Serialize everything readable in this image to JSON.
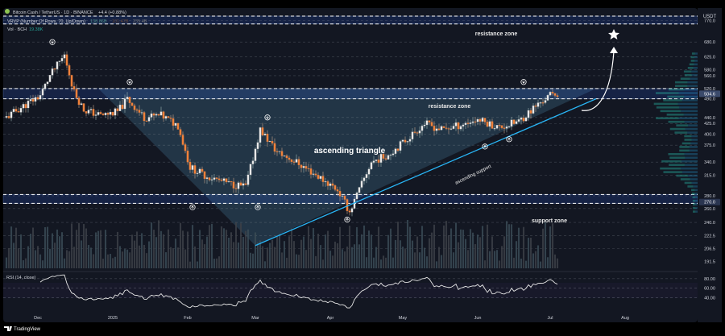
{
  "header": {
    "symbol_line": "Bitcoin Cash / TetherUS · 1D · BINANCE",
    "change": "+4.4 (+0.88%)",
    "vrvp_label": "VRVP (Number Of Rows, 70, Up/Down)",
    "vrvp_values": [
      "138.86B",
      "101.47B",
      "235.4B"
    ],
    "vol_label": "Vol · BCH",
    "vol_value": "19.38K"
  },
  "price_axis": {
    "currency": "USDT",
    "labels": [
      "770.0",
      "680.0",
      "625.0",
      "580.0",
      "560.0",
      "520.0",
      "490.0",
      "440.0",
      "425.0",
      "400.0",
      "375.0",
      "340.0",
      "315.0",
      "280.0",
      "260.0",
      "240.0",
      "222.5",
      "206.5",
      "191.5"
    ],
    "current_price": "504.6",
    "support_price": "270.0"
  },
  "rsi": {
    "label": "RSI (14, close)",
    "ticks": [
      "80.00",
      "60.00",
      "40.00"
    ]
  },
  "time_axis": [
    "Dec",
    "2025",
    "Feb",
    "Mar",
    "Apr",
    "May",
    "Jun",
    "Jul",
    "Aug"
  ],
  "annotations": {
    "resistance_top": "resistance zone",
    "resistance_mid": "resistance zone",
    "triangle": "ascending triangle",
    "support_line": "ascending support",
    "support_zone": "support zone"
  },
  "footer": {
    "brand": "TradingView"
  },
  "colors": {
    "background": "#131722",
    "up": "#26a69a",
    "down": "#f0813a",
    "zone": "#2962ff",
    "triangle_fill": "#5aa6c8",
    "support_line": "#29b6f6",
    "rsi_line": "#e6e6e6"
  },
  "chart_data": {
    "type": "candlestick",
    "interval": "1D",
    "x_range": [
      "2024-11-18",
      "2025-08-31"
    ],
    "y_range": [
      185,
      790
    ],
    "y_scale": "log",
    "ohlc": [],
    "series": [
      {
        "name": "close (approx)",
        "x": [
          "2024-11-18",
          "2024-11-25",
          "2024-12-02",
          "2024-12-06",
          "2024-12-12",
          "2024-12-16",
          "2024-12-20",
          "2024-12-27",
          "2025-01-03",
          "2025-01-07",
          "2025-01-14",
          "2025-01-21",
          "2025-01-28",
          "2025-02-02",
          "2025-02-08",
          "2025-02-18",
          "2025-02-25",
          "2025-03-03",
          "2025-03-10",
          "2025-03-18",
          "2025-03-28",
          "2025-04-04",
          "2025-04-09",
          "2025-04-18",
          "2025-04-25",
          "2025-05-02",
          "2025-05-10",
          "2025-05-17",
          "2025-05-24",
          "2025-06-01",
          "2025-06-10",
          "2025-06-18",
          "2025-06-25",
          "2025-07-01",
          "2025-07-04"
        ],
        "values": [
          440,
          470,
          500,
          560,
          630,
          510,
          460,
          445,
          455,
          490,
          440,
          445,
          420,
          330,
          315,
          300,
          295,
          410,
          360,
          340,
          310,
          290,
          255,
          340,
          355,
          385,
          425,
          410,
          420,
          435,
          415,
          430,
          470,
          500,
          505
        ]
      }
    ],
    "volume": [],
    "rsi_series": {
      "x": [],
      "values": []
    },
    "levels": [
      {
        "label": "resistance zone",
        "low": 755,
        "high": 790
      },
      {
        "label": "resistance zone",
        "low": 490,
        "high": 520
      },
      {
        "label": "support zone",
        "low": 268,
        "high": 282
      }
    ],
    "lines": [
      {
        "label": "ascending support",
        "from": [
          "2025-03-01",
          210
        ],
        "to": [
          "2025-07-20",
          490
        ]
      }
    ]
  }
}
